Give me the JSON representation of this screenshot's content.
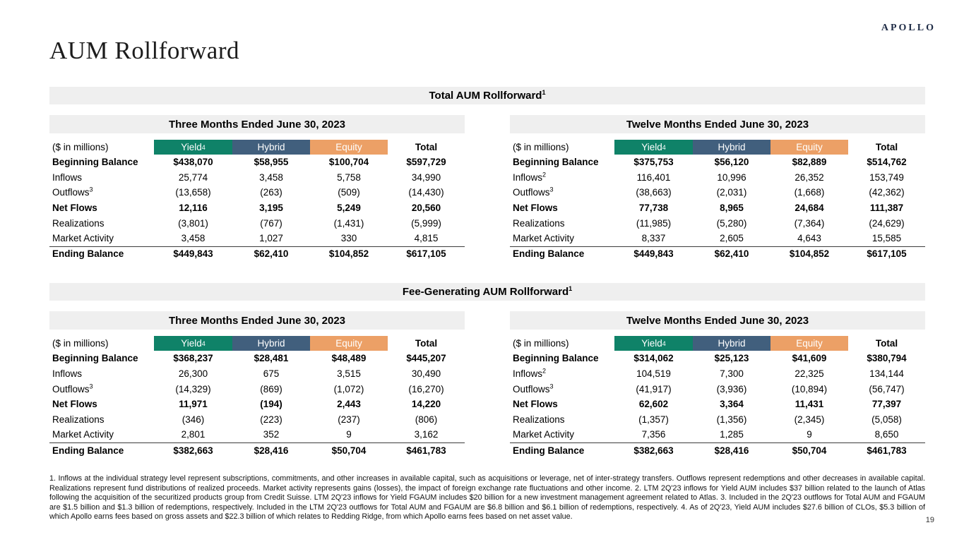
{
  "page": {
    "logo": "APOLLO",
    "title": "AUM Rollforward",
    "page_number": "19"
  },
  "colors": {
    "yield": "#0F8268",
    "hybrid": "#415F7D",
    "equity": "#ECA066",
    "section_bar_bg": "#EFEFEF"
  },
  "sections": [
    {
      "title": "Total AUM Rollforward",
      "title_sup": "1",
      "tables": [
        {
          "period": "Three Months Ended June 30, 2023",
          "unit_label": "($ in millions)",
          "columns": [
            {
              "label": "Yield",
              "sup": "4"
            },
            {
              "label": "Hybrid",
              "sup": ""
            },
            {
              "label": "Equity",
              "sup": ""
            },
            {
              "label": "Total",
              "sup": ""
            }
          ],
          "rows": [
            {
              "label": "Beginning Balance",
              "sup": "",
              "bold": true,
              "topline": false,
              "values": [
                "$438,070",
                "$58,955",
                "$100,704",
                "$597,729"
              ]
            },
            {
              "label": "Inflows",
              "sup": "",
              "bold": false,
              "topline": false,
              "values": [
                "25,774",
                "3,458",
                "5,758",
                "34,990"
              ]
            },
            {
              "label": "Outflows",
              "sup": "3",
              "bold": false,
              "topline": false,
              "values": [
                "(13,658)",
                "(263)",
                "(509)",
                "(14,430)"
              ]
            },
            {
              "label": "Net Flows",
              "sup": "",
              "bold": true,
              "topline": false,
              "values": [
                "12,116",
                "3,195",
                "5,249",
                "20,560"
              ]
            },
            {
              "label": "Realizations",
              "sup": "",
              "bold": false,
              "topline": false,
              "values": [
                "(3,801)",
                "(767)",
                "(1,431)",
                "(5,999)"
              ]
            },
            {
              "label": "Market Activity",
              "sup": "",
              "bold": false,
              "topline": false,
              "values": [
                "3,458",
                "1,027",
                "330",
                "4,815"
              ]
            },
            {
              "label": "Ending Balance",
              "sup": "",
              "bold": true,
              "topline": true,
              "values": [
                "$449,843",
                "$62,410",
                "$104,852",
                "$617,105"
              ]
            }
          ]
        },
        {
          "period": "Twelve Months Ended June 30, 2023",
          "unit_label": "($ in millions)",
          "columns": [
            {
              "label": "Yield",
              "sup": "4"
            },
            {
              "label": "Hybrid",
              "sup": ""
            },
            {
              "label": "Equity",
              "sup": ""
            },
            {
              "label": "Total",
              "sup": ""
            }
          ],
          "rows": [
            {
              "label": "Beginning Balance",
              "sup": "",
              "bold": true,
              "topline": false,
              "values": [
                "$375,753",
                "$56,120",
                "$82,889",
                "$514,762"
              ]
            },
            {
              "label": "Inflows",
              "sup": "2",
              "bold": false,
              "topline": false,
              "values": [
                "116,401",
                "10,996",
                "26,352",
                "153,749"
              ]
            },
            {
              "label": "Outflows",
              "sup": "3",
              "bold": false,
              "topline": false,
              "values": [
                "(38,663)",
                "(2,031)",
                "(1,668)",
                "(42,362)"
              ]
            },
            {
              "label": "Net Flows",
              "sup": "",
              "bold": true,
              "topline": false,
              "values": [
                "77,738",
                "8,965",
                "24,684",
                "111,387"
              ]
            },
            {
              "label": "Realizations",
              "sup": "",
              "bold": false,
              "topline": false,
              "values": [
                "(11,985)",
                "(5,280)",
                "(7,364)",
                "(24,629)"
              ]
            },
            {
              "label": "Market Activity",
              "sup": "",
              "bold": false,
              "topline": false,
              "values": [
                "8,337",
                "2,605",
                "4,643",
                "15,585"
              ]
            },
            {
              "label": "Ending Balance",
              "sup": "",
              "bold": true,
              "topline": true,
              "values": [
                "$449,843",
                "$62,410",
                "$104,852",
                "$617,105"
              ]
            }
          ]
        }
      ]
    },
    {
      "title": "Fee-Generating AUM Rollforward",
      "title_sup": "1",
      "tables": [
        {
          "period": "Three Months Ended June 30, 2023",
          "unit_label": "($ in millions)",
          "columns": [
            {
              "label": "Yield",
              "sup": "4"
            },
            {
              "label": "Hybrid",
              "sup": ""
            },
            {
              "label": "Equity",
              "sup": ""
            },
            {
              "label": "Total",
              "sup": ""
            }
          ],
          "rows": [
            {
              "label": "Beginning Balance",
              "sup": "",
              "bold": true,
              "topline": false,
              "values": [
                "$368,237",
                "$28,481",
                "$48,489",
                "$445,207"
              ]
            },
            {
              "label": "Inflows",
              "sup": "",
              "bold": false,
              "topline": false,
              "values": [
                "26,300",
                "675",
                "3,515",
                "30,490"
              ]
            },
            {
              "label": "Outflows",
              "sup": "3",
              "bold": false,
              "topline": false,
              "values": [
                "(14,329)",
                "(869)",
                "(1,072)",
                "(16,270)"
              ]
            },
            {
              "label": "Net Flows",
              "sup": "",
              "bold": true,
              "topline": false,
              "values": [
                "11,971",
                "(194)",
                "2,443",
                "14,220"
              ]
            },
            {
              "label": "Realizations",
              "sup": "",
              "bold": false,
              "topline": false,
              "values": [
                "(346)",
                "(223)",
                "(237)",
                "(806)"
              ]
            },
            {
              "label": "Market Activity",
              "sup": "",
              "bold": false,
              "topline": false,
              "values": [
                "2,801",
                "352",
                "9",
                "3,162"
              ]
            },
            {
              "label": "Ending Balance",
              "sup": "",
              "bold": true,
              "topline": true,
              "values": [
                "$382,663",
                "$28,416",
                "$50,704",
                "$461,783"
              ]
            }
          ]
        },
        {
          "period": "Twelve Months Ended June 30, 2023",
          "unit_label": "($ in millions)",
          "columns": [
            {
              "label": "Yield",
              "sup": "4"
            },
            {
              "label": "Hybrid",
              "sup": ""
            },
            {
              "label": "Equity",
              "sup": ""
            },
            {
              "label": "Total",
              "sup": ""
            }
          ],
          "rows": [
            {
              "label": "Beginning Balance",
              "sup": "",
              "bold": true,
              "topline": false,
              "values": [
                "$314,062",
                "$25,123",
                "$41,609",
                "$380,794"
              ]
            },
            {
              "label": "Inflows",
              "sup": "2",
              "bold": false,
              "topline": false,
              "values": [
                "104,519",
                "7,300",
                "22,325",
                "134,144"
              ]
            },
            {
              "label": "Outflows",
              "sup": "3",
              "bold": false,
              "topline": false,
              "values": [
                "(41,917)",
                "(3,936)",
                "(10,894)",
                "(56,747)"
              ]
            },
            {
              "label": "Net Flows",
              "sup": "",
              "bold": true,
              "topline": false,
              "values": [
                "62,602",
                "3,364",
                "11,431",
                "77,397"
              ]
            },
            {
              "label": "Realizations",
              "sup": "",
              "bold": false,
              "topline": false,
              "values": [
                "(1,357)",
                "(1,356)",
                "(2,345)",
                "(5,058)"
              ]
            },
            {
              "label": "Market Activity",
              "sup": "",
              "bold": false,
              "topline": false,
              "values": [
                "7,356",
                "1,285",
                "9",
                "8,650"
              ]
            },
            {
              "label": "Ending Balance",
              "sup": "",
              "bold": true,
              "topline": true,
              "values": [
                "$382,663",
                "$28,416",
                "$50,704",
                "$461,783"
              ]
            }
          ]
        }
      ]
    }
  ],
  "footnotes": {
    "text": "1. Inflows at the individual strategy level represent subscriptions, commitments, and other increases in available capital, such as acquisitions or leverage, net of inter-strategy transfers. Outflows represent redemptions and other decreases in available capital. Realizations represent fund distributions of realized proceeds. Market activity represents gains (losses), the impact of foreign exchange rate fluctuations and other income. 2. LTM 2Q'23 inflows for Yield AUM includes $37 billion related to the launch of Atlas following the acquisition of the securitized products group from Credit Suisse. LTM 2Q'23 inflows for Yield FGAUM includes $20 billion for a new investment management agreement related to Atlas. 3. Included in the 2Q'23 outflows for Total AUM and FGAUM are $1.5 billion and $1.3 billion of redemptions, respectively. Included in the LTM 2Q'23 outflows for Total AUM and FGAUM are $6.8 billion and $6.1 billion of redemptions, respectively. 4. As of 2Q'23, Yield AUM includes $27.6 billion of CLOs, $5.3 billion of which Apollo earns fees based on gross assets and $22.3 billion of which relates to Redding Ridge, from which Apollo earns fees based on net asset value."
  }
}
